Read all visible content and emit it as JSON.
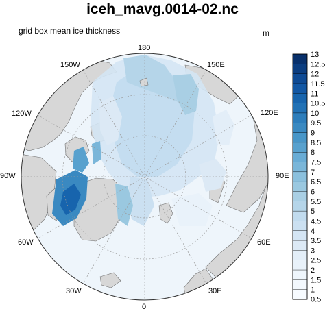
{
  "title": "iceh_mavg.0014-02.nc",
  "subtitle": "grid box mean ice thickness",
  "units": "m",
  "longitude_labels": {
    "lon_180": "180",
    "lon_150w": "150W",
    "lon_150e": "150E",
    "lon_120w": "120W",
    "lon_120e": "120E",
    "lon_90w": "90W",
    "lon_90e": "90E",
    "lon_60w": "60W",
    "lon_60e": "60E",
    "lon_30w": "30W",
    "lon_30e": "30E",
    "lon_0": "0"
  },
  "colorbar": {
    "labels": [
      "13",
      "12.5",
      "12",
      "11.5",
      "11",
      "10.5",
      "10",
      "9.5",
      "9",
      "8.5",
      "8",
      "7.5",
      "7",
      "6.5",
      "6",
      "5.5",
      "5",
      "4.5",
      "4",
      "3.5",
      "3",
      "2.5",
      "2",
      "1.5",
      "1",
      "0.5"
    ],
    "colors": [
      "#08306b",
      "#0b3d80",
      "#0e4a94",
      "#1257a4",
      "#1764ad",
      "#2171b5",
      "#2d7dbb",
      "#3a89c1",
      "#4896c8",
      "#58a1ce",
      "#69acd5",
      "#7ab6d9",
      "#8bc0dd",
      "#9ac8e0",
      "#a9cfe4",
      "#b5d5e9",
      "#c1dbee",
      "#cbe0f1",
      "#d4e5f4",
      "#dce9f5",
      "#e3eef8",
      "#e9f2fa",
      "#eff6fc",
      "#f3f8fd",
      "#f7fbff"
    ]
  },
  "colors": {
    "land": "#d7d7d7",
    "coast": "#707070",
    "grid": "#9a9a9a"
  }
}
